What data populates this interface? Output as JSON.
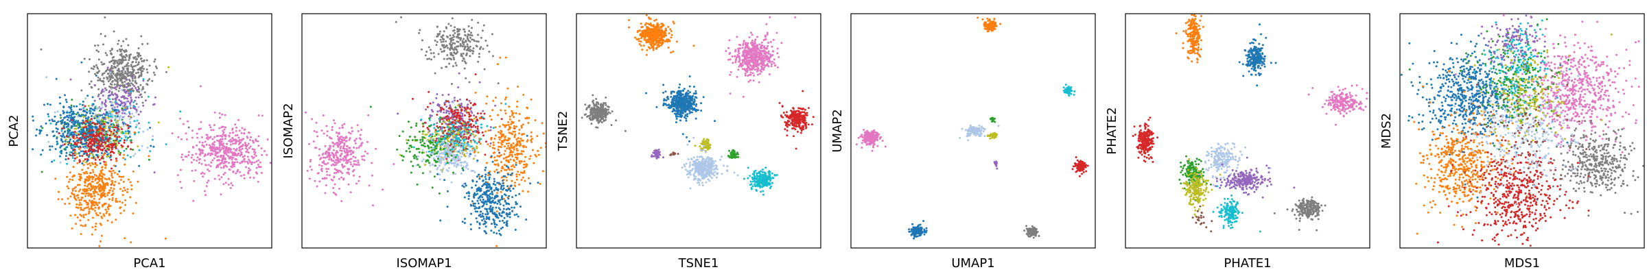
{
  "palette": {
    "blue": "#1f77b4",
    "orange": "#ff7f0e",
    "green": "#2ca02c",
    "red": "#d62728",
    "purple": "#9467bd",
    "brown": "#8c564b",
    "pink": "#e377c2",
    "gray": "#7f7f7f",
    "olive": "#bcbd22",
    "cyan": "#17becf",
    "lightblue": "#aec7e8"
  },
  "chart_data": [
    {
      "type": "scatter",
      "title": "",
      "xlabel": "PCA1",
      "ylabel": "PCA2",
      "xlim": [
        0,
        10
      ],
      "ylim": [
        0,
        10
      ],
      "grid": false,
      "ticks": "hidden",
      "clusters": [
        {
          "color": "gray",
          "center": [
            3.9,
            7.5
          ],
          "spread": [
            0.55,
            0.55
          ],
          "n": 420
        },
        {
          "color": "purple",
          "center": [
            3.7,
            6.2
          ],
          "spread": [
            0.5,
            0.45
          ],
          "n": 160
        },
        {
          "color": "cyan",
          "center": [
            3.2,
            5.0
          ],
          "spread": [
            0.8,
            0.55
          ],
          "n": 160
        },
        {
          "color": "green",
          "center": [
            2.8,
            5.0
          ],
          "spread": [
            0.7,
            0.5
          ],
          "n": 140
        },
        {
          "color": "olive",
          "center": [
            3.0,
            4.9
          ],
          "spread": [
            0.7,
            0.55
          ],
          "n": 120
        },
        {
          "color": "lightblue",
          "center": [
            3.0,
            5.2
          ],
          "spread": [
            0.8,
            0.6
          ],
          "n": 160
        },
        {
          "color": "blue",
          "center": [
            2.2,
            5.0
          ],
          "spread": [
            0.75,
            0.6
          ],
          "n": 420
        },
        {
          "color": "red",
          "center": [
            2.8,
            4.6
          ],
          "spread": [
            0.55,
            0.45
          ],
          "n": 220
        },
        {
          "color": "orange",
          "center": [
            2.8,
            2.4
          ],
          "spread": [
            0.6,
            0.7
          ],
          "n": 420
        },
        {
          "color": "pink",
          "center": [
            8.1,
            4.1
          ],
          "spread": [
            0.75,
            0.55
          ],
          "n": 480
        }
      ]
    },
    {
      "type": "scatter",
      "title": "",
      "xlabel": "ISOMAP1",
      "ylabel": "ISOMAP2",
      "xlim": [
        0,
        10
      ],
      "ylim": [
        0,
        10
      ],
      "grid": false,
      "ticks": "hidden",
      "clusters": [
        {
          "color": "gray",
          "center": [
            6.3,
            8.7
          ],
          "spread": [
            0.6,
            0.45
          ],
          "n": 240
        },
        {
          "color": "pink",
          "center": [
            1.5,
            4.0
          ],
          "spread": [
            0.5,
            0.65
          ],
          "n": 320
        },
        {
          "color": "purple",
          "center": [
            6.2,
            5.6
          ],
          "spread": [
            0.5,
            0.5
          ],
          "n": 170
        },
        {
          "color": "red",
          "center": [
            6.5,
            5.2
          ],
          "spread": [
            0.5,
            0.45
          ],
          "n": 220
        },
        {
          "color": "olive",
          "center": [
            6.0,
            4.6
          ],
          "spread": [
            0.55,
            0.45
          ],
          "n": 140
        },
        {
          "color": "cyan",
          "center": [
            6.3,
            4.7
          ],
          "spread": [
            0.55,
            0.4
          ],
          "n": 140
        },
        {
          "color": "lightblue",
          "center": [
            6.1,
            3.9
          ],
          "spread": [
            0.5,
            0.4
          ],
          "n": 200
        },
        {
          "color": "green",
          "center": [
            5.1,
            4.3
          ],
          "spread": [
            0.55,
            0.45
          ],
          "n": 120
        },
        {
          "color": "orange",
          "center": [
            8.6,
            4.4
          ],
          "spread": [
            0.55,
            0.9
          ],
          "n": 340
        },
        {
          "color": "blue",
          "center": [
            7.8,
            2.0
          ],
          "spread": [
            0.55,
            0.65
          ],
          "n": 360
        },
        {
          "color": "brown",
          "center": [
            6.2,
            5.0
          ],
          "spread": [
            0.4,
            0.4
          ],
          "n": 30
        }
      ]
    },
    {
      "type": "scatter",
      "title": "",
      "xlabel": "TSNE1",
      "ylabel": "TSNE2",
      "xlim": [
        0,
        10
      ],
      "ylim": [
        0,
        10
      ],
      "grid": false,
      "ticks": "hidden",
      "clusters": [
        {
          "color": "orange",
          "center": [
            3.2,
            9.1
          ],
          "spread": [
            0.28,
            0.25
          ],
          "n": 420
        },
        {
          "color": "pink",
          "center": [
            7.3,
            8.2
          ],
          "spread": [
            0.38,
            0.35
          ],
          "n": 480
        },
        {
          "color": "gray",
          "center": [
            0.9,
            5.8
          ],
          "spread": [
            0.22,
            0.22
          ],
          "n": 260
        },
        {
          "color": "blue",
          "center": [
            4.3,
            6.2
          ],
          "spread": [
            0.3,
            0.28
          ],
          "n": 420
        },
        {
          "color": "red",
          "center": [
            9.0,
            5.5
          ],
          "spread": [
            0.22,
            0.22
          ],
          "n": 260
        },
        {
          "color": "olive",
          "center": [
            5.3,
            4.4
          ],
          "spread": [
            0.1,
            0.12
          ],
          "n": 60
        },
        {
          "color": "purple",
          "center": [
            3.3,
            4.0
          ],
          "spread": [
            0.09,
            0.09
          ],
          "n": 40
        },
        {
          "color": "green",
          "center": [
            6.4,
            4.0
          ],
          "spread": [
            0.1,
            0.1
          ],
          "n": 40
        },
        {
          "color": "lightblue",
          "center": [
            5.2,
            3.4
          ],
          "spread": [
            0.3,
            0.25
          ],
          "n": 340
        },
        {
          "color": "cyan",
          "center": [
            7.6,
            2.9
          ],
          "spread": [
            0.22,
            0.2
          ],
          "n": 230
        },
        {
          "color": "brown",
          "center": [
            4.0,
            4.0
          ],
          "spread": [
            0.1,
            0.05
          ],
          "n": 12
        }
      ]
    },
    {
      "type": "scatter",
      "title": "",
      "xlabel": "UMAP1",
      "ylabel": "UMAP2",
      "xlim": [
        0,
        10
      ],
      "ylim": [
        0,
        10
      ],
      "grid": false,
      "ticks": "hidden",
      "clusters": [
        {
          "color": "orange",
          "center": [
            5.7,
            9.5
          ],
          "spread": [
            0.12,
            0.1
          ],
          "n": 140
        },
        {
          "color": "cyan",
          "center": [
            8.9,
            6.7
          ],
          "spread": [
            0.08,
            0.08
          ],
          "n": 60
        },
        {
          "color": "pink",
          "center": [
            0.8,
            4.7
          ],
          "spread": [
            0.17,
            0.14
          ],
          "n": 200
        },
        {
          "color": "lightblue",
          "center": [
            5.1,
            5.0
          ],
          "spread": [
            0.15,
            0.1
          ],
          "n": 150
        },
        {
          "color": "olive",
          "center": [
            5.8,
            4.8
          ],
          "spread": [
            0.09,
            0.05
          ],
          "n": 50
        },
        {
          "color": "green",
          "center": [
            5.8,
            5.5
          ],
          "spread": [
            0.05,
            0.05
          ],
          "n": 20
        },
        {
          "color": "purple",
          "center": [
            5.9,
            3.6
          ],
          "spread": [
            0.05,
            0.07
          ],
          "n": 18
        },
        {
          "color": "red",
          "center": [
            9.4,
            3.5
          ],
          "spread": [
            0.12,
            0.1
          ],
          "n": 120
        },
        {
          "color": "blue",
          "center": [
            2.7,
            0.7
          ],
          "spread": [
            0.13,
            0.1
          ],
          "n": 150
        },
        {
          "color": "gray",
          "center": [
            7.4,
            0.7
          ],
          "spread": [
            0.11,
            0.09
          ],
          "n": 110
        }
      ]
    },
    {
      "type": "scatter",
      "title": "",
      "xlabel": "PHATE1",
      "ylabel": "PHATE2",
      "xlim": [
        0,
        10
      ],
      "ylim": [
        0,
        10
      ],
      "grid": false,
      "ticks": "hidden",
      "clusters": [
        {
          "color": "orange",
          "center": [
            2.8,
            9.0
          ],
          "spread": [
            0.14,
            0.45
          ],
          "n": 200
        },
        {
          "color": "blue",
          "center": [
            5.3,
            8.1
          ],
          "spread": [
            0.18,
            0.3
          ],
          "n": 220
        },
        {
          "color": "pink",
          "center": [
            8.9,
            6.2
          ],
          "spread": [
            0.35,
            0.22
          ],
          "n": 200
        },
        {
          "color": "red",
          "center": [
            0.8,
            4.6
          ],
          "spread": [
            0.16,
            0.35
          ],
          "n": 200
        },
        {
          "color": "lightblue",
          "center": [
            4.0,
            3.8
          ],
          "spread": [
            0.35,
            0.3
          ],
          "n": 180
        },
        {
          "color": "purple",
          "center": [
            4.9,
            2.9
          ],
          "spread": [
            0.45,
            0.2
          ],
          "n": 220
        },
        {
          "color": "green",
          "center": [
            2.7,
            3.2
          ],
          "spread": [
            0.2,
            0.3
          ],
          "n": 150
        },
        {
          "color": "olive",
          "center": [
            2.9,
            2.5
          ],
          "spread": [
            0.22,
            0.35
          ],
          "n": 180
        },
        {
          "color": "cyan",
          "center": [
            4.3,
            1.5
          ],
          "spread": [
            0.2,
            0.25
          ],
          "n": 160
        },
        {
          "color": "gray",
          "center": [
            7.5,
            1.7
          ],
          "spread": [
            0.28,
            0.2
          ],
          "n": 200
        },
        {
          "color": "brown",
          "center": [
            3.1,
            1.2
          ],
          "spread": [
            0.2,
            0.2
          ],
          "n": 20
        }
      ]
    },
    {
      "type": "scatter",
      "title": "",
      "xlabel": "MDS1",
      "ylabel": "MDS2",
      "xlim": [
        0,
        10
      ],
      "ylim": [
        0,
        10
      ],
      "grid": false,
      "ticks": "hidden",
      "clusters": [
        {
          "color": "pink",
          "center": [
            7.2,
            6.8
          ],
          "spread": [
            0.9,
            1.0
          ],
          "n": 600
        },
        {
          "color": "blue",
          "center": [
            2.8,
            6.5
          ],
          "spread": [
            0.9,
            0.85
          ],
          "n": 600
        },
        {
          "color": "gray",
          "center": [
            8.1,
            3.6
          ],
          "spread": [
            0.7,
            0.6
          ],
          "n": 380
        },
        {
          "color": "orange",
          "center": [
            2.5,
            3.7
          ],
          "spread": [
            0.75,
            0.9
          ],
          "n": 480
        },
        {
          "color": "red",
          "center": [
            4.8,
            2.3
          ],
          "spread": [
            0.85,
            0.9
          ],
          "n": 480
        },
        {
          "color": "lightblue",
          "center": [
            5.0,
            5.0
          ],
          "spread": [
            1.0,
            1.0
          ],
          "n": 300
        },
        {
          "color": "cyan",
          "center": [
            4.8,
            7.8
          ],
          "spread": [
            0.6,
            0.9
          ],
          "n": 200
        },
        {
          "color": "green",
          "center": [
            4.6,
            7.2
          ],
          "spread": [
            0.8,
            0.9
          ],
          "n": 180
        },
        {
          "color": "olive",
          "center": [
            5.2,
            6.5
          ],
          "spread": [
            0.8,
            0.9
          ],
          "n": 180
        },
        {
          "color": "purple",
          "center": [
            4.6,
            8.8
          ],
          "spread": [
            0.5,
            0.5
          ],
          "n": 120
        },
        {
          "color": "brown",
          "center": [
            5.0,
            5.0
          ],
          "spread": [
            1.2,
            1.2
          ],
          "n": 80
        }
      ]
    }
  ]
}
